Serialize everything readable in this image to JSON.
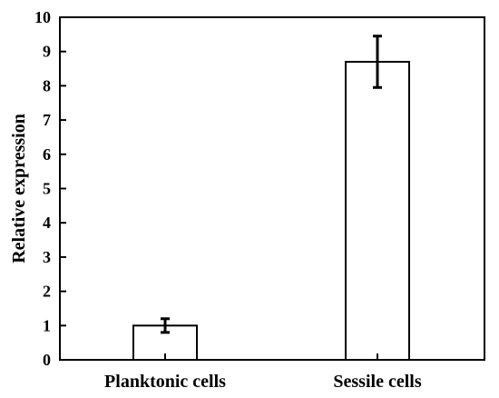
{
  "chart_data": {
    "type": "bar",
    "categories": [
      "Planktonic cells",
      "Sessile cells"
    ],
    "values": [
      1.0,
      8.7
    ],
    "errors": [
      0.2,
      0.75
    ],
    "xlabel": "",
    "ylabel": "Relative expression",
    "ylim": [
      0,
      10
    ],
    "yticks": [
      0,
      1,
      2,
      3,
      4,
      5,
      6,
      7,
      8,
      9,
      10
    ],
    "grid": false,
    "legend": "none",
    "bar_fill": "#ffffff",
    "stroke_color": "#000000"
  }
}
